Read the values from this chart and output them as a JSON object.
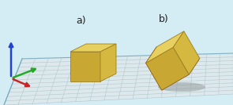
{
  "bg_color": "#d4ecf4",
  "grid_bg": "#dde8ec",
  "grid_line_color": "#b0c8cc",
  "grid_border_color": "#7ab0c0",
  "axis_z_color": "#2244cc",
  "axis_y_color": "#22aa22",
  "axis_x_color": "#cc2222",
  "cube_front": "#c8a832",
  "cube_right": "#d4b840",
  "cube_top": "#e8d060",
  "red_face": "#ee1111",
  "shadow_color": "#909898",
  "label_a": "a)",
  "label_b": "b)",
  "label_fontsize": 9,
  "label_color": "#222222"
}
